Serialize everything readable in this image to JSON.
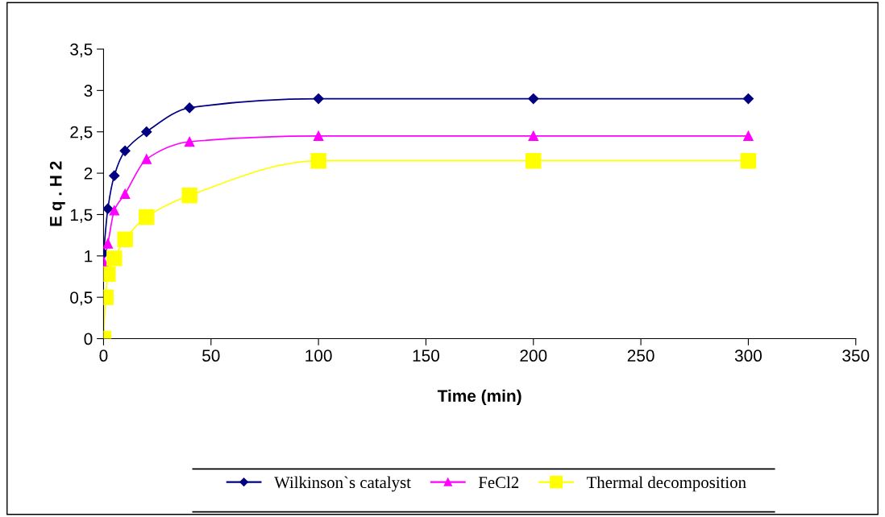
{
  "chart_data": {
    "type": "line",
    "xlabel": "Time (min)",
    "ylabel": "E q . H 2",
    "xlim": [
      0,
      350
    ],
    "xticks": [
      0,
      50,
      100,
      150,
      200,
      250,
      300,
      350
    ],
    "ylim": [
      0,
      3.5
    ],
    "yticks": [
      0,
      {
        "value": 0.5,
        "label": "0,5"
      },
      1,
      {
        "value": 1.5,
        "label": "1,5"
      },
      2,
      {
        "value": 2.5,
        "label": "2,5"
      },
      3,
      {
        "value": 3.5,
        "label": "3,5"
      }
    ],
    "grid": false,
    "legend": "bottom",
    "line_style": "solid",
    "series": [
      {
        "name": "Wilkinson`s catalyst",
        "color": "#000080",
        "marker": "diamond",
        "x": [
          0,
          2,
          5,
          10,
          20,
          40,
          100,
          200,
          300
        ],
        "values": [
          1.03,
          1.57,
          1.97,
          2.27,
          2.5,
          2.79,
          2.9,
          2.9,
          2.9
        ]
      },
      {
        "name": "FeCl2",
        "color": "#ff00ff",
        "marker": "triangle",
        "x": [
          0,
          2,
          5,
          10,
          20,
          40,
          100,
          200,
          300
        ],
        "values": [
          0.93,
          1.15,
          1.55,
          1.75,
          2.17,
          2.38,
          2.45,
          2.45,
          2.45
        ]
      },
      {
        "name": "Thermal decomposition",
        "color": "#ffff00",
        "marker": "square",
        "x": [
          0,
          1,
          2,
          5,
          10,
          20,
          40,
          100,
          200,
          300
        ],
        "values": [
          0,
          0.5,
          0.78,
          0.97,
          1.2,
          1.47,
          1.73,
          2.15,
          2.15,
          2.15
        ]
      }
    ]
  }
}
